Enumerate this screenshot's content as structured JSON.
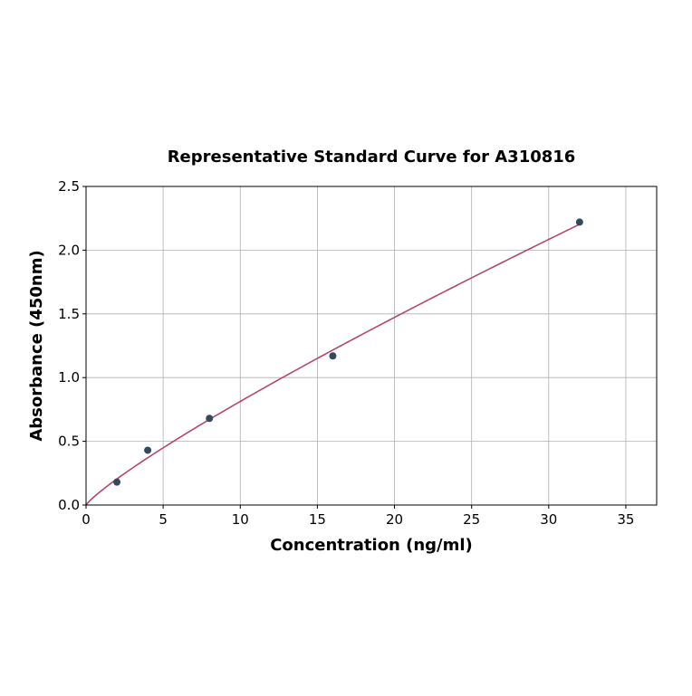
{
  "chart_data": {
    "type": "scatter",
    "title": "Representative Standard Curve for A310816",
    "xlabel": "Concentration (ng/ml)",
    "ylabel": "Absorbance (450nm)",
    "xlim": [
      0,
      37
    ],
    "ylim": [
      0,
      2.5
    ],
    "xticks": [
      0,
      5,
      10,
      15,
      20,
      25,
      30,
      35
    ],
    "yticks": [
      0.0,
      0.5,
      1.0,
      1.5,
      2.0,
      2.5
    ],
    "grid": true,
    "points": {
      "x": [
        2,
        4,
        8,
        16,
        32
      ],
      "y": [
        0.18,
        0.43,
        0.68,
        1.17,
        2.22
      ],
      "color": "#34495e"
    },
    "fit_curve": {
      "model": "power",
      "a": 0.113,
      "b": 0.857,
      "x_range": [
        0,
        32
      ],
      "color": "#b5476e"
    }
  }
}
